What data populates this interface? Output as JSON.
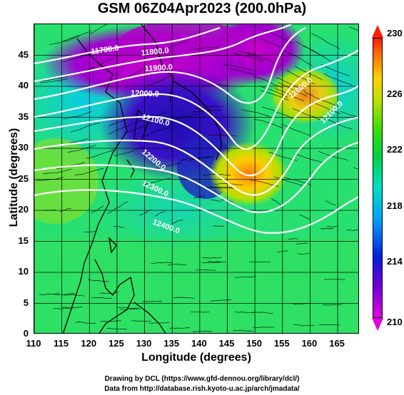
{
  "title": "GSM 06Z04Apr2023 (200.0hPa)",
  "xlabel": "Longitude (degrees)",
  "ylabel": "Latitude  (degrees)",
  "chart_data": {
    "type": "heatmap",
    "map": "200 hPa geopotential height contours, wind streamlines and shaded scalar field",
    "x_range": [
      110,
      169
    ],
    "y_range": [
      0,
      50
    ],
    "x_ticks": [
      110,
      115,
      120,
      125,
      130,
      135,
      140,
      145,
      150,
      155,
      160,
      165
    ],
    "y_ticks": [
      0,
      5,
      10,
      15,
      20,
      25,
      30,
      35,
      40,
      45
    ],
    "colorbar": {
      "min": 210,
      "max": 230,
      "ticks": [
        230,
        226,
        222,
        218,
        214,
        210
      ]
    },
    "contours": [
      {
        "label": "11700.0"
      },
      {
        "label": "11800.0"
      },
      {
        "label": "11900.0"
      },
      {
        "label": "12000.0"
      },
      {
        "label": "12100.0"
      },
      {
        "label": "12200.0"
      },
      {
        "label": "12300.0"
      },
      {
        "label": "12400.0"
      }
    ],
    "grid": true
  },
  "credits": {
    "line1": "Drawing by DCL (https://www.gfd-dennou.org/library/dcl/)",
    "line2": "Data from http://database.rish.kyoto-u.ac.jp/arch/jmadata/"
  }
}
